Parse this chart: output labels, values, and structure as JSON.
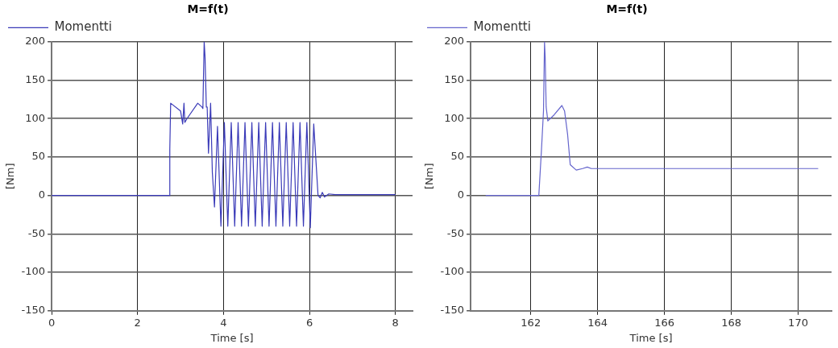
{
  "chart_data": [
    {
      "type": "line",
      "title": "M=f(t)",
      "xlabel": "Time [s]",
      "ylabel": "[Nm]",
      "legend": "top left",
      "grid": true,
      "marker": "none",
      "line_style": "solid",
      "xlim": [
        0,
        8.4
      ],
      "ylim": [
        -150,
        200
      ],
      "xticks": [
        0,
        2,
        4,
        6,
        8
      ],
      "yticks": [
        -150,
        -100,
        -50,
        0,
        50,
        100,
        150,
        200
      ],
      "series": [
        {
          "name": "Momentti",
          "color": "#3a3ab8",
          "x": [
            0,
            2.75,
            2.75,
            2.77,
            3.0,
            3.05,
            3.08,
            3.1,
            3.15,
            3.4,
            3.5,
            3.52,
            3.55,
            3.57,
            3.6,
            3.62,
            3.65,
            3.7,
            3.74,
            3.79,
            3.86,
            3.94,
            4.02,
            4.1,
            4.18,
            4.26,
            4.34,
            4.42,
            4.5,
            4.58,
            4.66,
            4.74,
            4.82,
            4.9,
            4.98,
            5.06,
            5.14,
            5.22,
            5.3,
            5.38,
            5.46,
            5.54,
            5.62,
            5.7,
            5.78,
            5.86,
            5.94,
            6.02,
            6.1,
            6.2,
            6.25,
            6.3,
            6.35,
            6.45,
            6.6,
            6.8,
            8.0
          ],
          "values": [
            0,
            0,
            60,
            120,
            110,
            93,
            120,
            95,
            100,
            120,
            115,
            113,
            200,
            180,
            115,
            115,
            55,
            120,
            30,
            -15,
            90,
            -40,
            95,
            -40,
            95,
            -40,
            95,
            -40,
            95,
            -40,
            95,
            -40,
            95,
            -40,
            95,
            -40,
            95,
            -40,
            95,
            -40,
            95,
            -40,
            95,
            -40,
            95,
            -40,
            95,
            -42,
            93,
            0,
            -3,
            4,
            -2,
            2,
            1,
            1,
            1
          ]
        }
      ]
    },
    {
      "type": "line",
      "title": "M=f(t)",
      "xlabel": "Time [s]",
      "ylabel": "[Nm]",
      "legend": "top left",
      "grid": true,
      "marker": "none",
      "line_style": "solid",
      "xlim": [
        160.2,
        171
      ],
      "ylim": [
        -150,
        200
      ],
      "xticks": [
        162,
        164,
        166,
        168,
        170
      ],
      "yticks": [
        -150,
        -100,
        -50,
        0,
        50,
        100,
        150,
        200
      ],
      "series": [
        {
          "name": "Momentti",
          "color": "#6464cc",
          "x": [
            160.65,
            162.24,
            162.32,
            162.38,
            162.41,
            162.43,
            162.46,
            162.51,
            162.7,
            162.93,
            163.01,
            163.1,
            163.18,
            163.36,
            163.55,
            163.69,
            163.81,
            170.6
          ],
          "values": [
            0,
            0,
            60,
            110,
            200,
            180,
            115,
            97,
            105,
            117,
            110,
            80,
            40,
            33,
            35,
            37,
            35,
            35
          ]
        }
      ]
    }
  ]
}
